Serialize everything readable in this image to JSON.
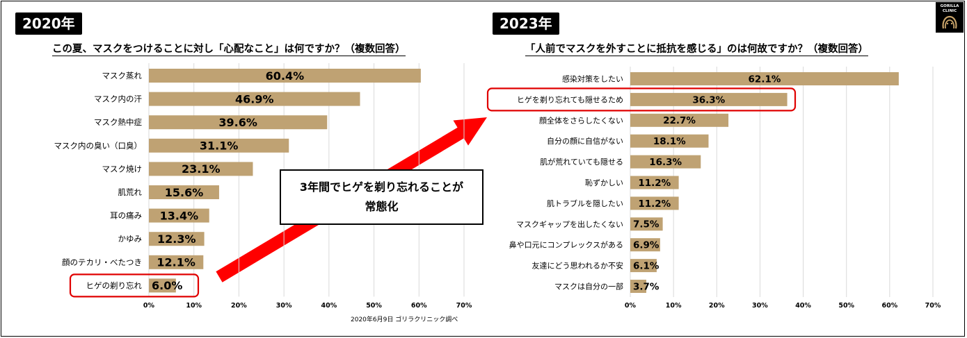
{
  "logo": {
    "line1": "GORILLA",
    "line2": "CLINIC"
  },
  "annotation": {
    "line1": "3年間でヒゲを剃り忘れることが",
    "line2": "常態化"
  },
  "colors": {
    "bar": "#bfa273",
    "highlight": "#e00000",
    "arrow": "#ff0000",
    "grid": "#d9d9d9"
  },
  "chart_data": [
    {
      "type": "bar",
      "orientation": "horizontal",
      "badge": "2020年",
      "title": "この夏、マスクをつけることに対し「心配なこと」は何ですか？（複数回答）",
      "source": "2020年6月9日 ゴリラクリニック調べ",
      "categories": [
        "マスク蒸れ",
        "マスク内の汗",
        "マスク熱中症",
        "マスク内の臭い（口臭）",
        "マスク焼け",
        "肌荒れ",
        "耳の痛み",
        "かゆみ",
        "顔のテカリ・べたつき",
        "ヒゲの剃り忘れ"
      ],
      "values": [
        60.4,
        46.9,
        39.6,
        31.1,
        23.1,
        15.6,
        13.4,
        12.3,
        12.1,
        6.0
      ],
      "value_labels": [
        "60.4%",
        "46.9%",
        "39.6%",
        "31.1%",
        "23.1%",
        "15.6%",
        "13.4%",
        "12.3%",
        "12.1%",
        "6.0%"
      ],
      "xlim": [
        0,
        70
      ],
      "ticks": [
        "0%",
        "10%",
        "20%",
        "30%",
        "40%",
        "50%",
        "60%",
        "70%"
      ],
      "highlight_index": 9,
      "grid": true
    },
    {
      "type": "bar",
      "orientation": "horizontal",
      "badge": "2023年",
      "title": "「人前でマスクを外すことに抵抗を感じる」のは何故ですか？（複数回答）",
      "categories": [
        "感染対策をしたい",
        "ヒゲを剃り忘れても隠せるため",
        "顔全体をさらしたくない",
        "自分の顔に自信がない",
        "肌が荒れていても隠せる",
        "恥ずかしい",
        "肌トラブルを隠したい",
        "マスクギャップを出したくない",
        "鼻や口元にコンプレックスがある",
        "友達にどう思われるか不安",
        "マスクは自分の一部"
      ],
      "values": [
        62.1,
        36.3,
        22.7,
        18.1,
        16.3,
        11.2,
        11.2,
        7.5,
        6.9,
        6.1,
        3.7
      ],
      "value_labels": [
        "62.1%",
        "36.3%",
        "22.7%",
        "18.1%",
        "16.3%",
        "11.2%",
        "11.2%",
        "7.5%",
        "6.9%",
        "6.1%",
        "3.7%"
      ],
      "xlim": [
        0,
        70
      ],
      "ticks": [
        "0%",
        "10%",
        "20%",
        "30%",
        "40%",
        "50%",
        "60%",
        "70%"
      ],
      "highlight_index": 1,
      "grid": true
    }
  ]
}
